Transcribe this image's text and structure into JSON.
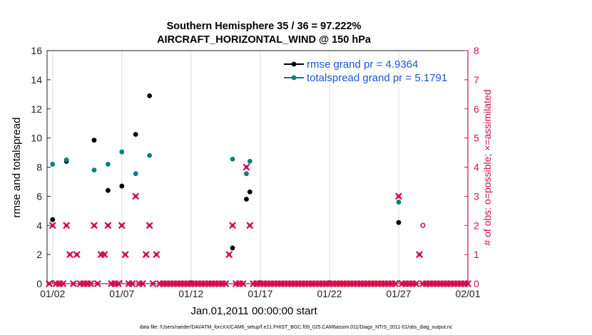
{
  "chart_data": {
    "type": "scatter",
    "title": "Southern Hemisphere 35 / 36 = 97.222%",
    "subtitle": "AIRCRAFT_HORIZONTAL_WIND @ 150 hPa",
    "xlabel": "Jan.01,2011 00:00:00 start",
    "ylabel": "rmse and totalspread",
    "ylabel_right": "# of obs: o=possible; ×=assimilated",
    "footnote": "data file: /Users/raeder/DAI/ATM_forcXX/CAM6_setup/f.e21.FHIST_BGC.f09_025.CAM6assim.011/Diags_NTrS_2011-01/obs_diag_output.nc",
    "x_ticks": [
      {
        "x": 2,
        "label": "01/02"
      },
      {
        "x": 7,
        "label": "01/07"
      },
      {
        "x": 12,
        "label": "01/12"
      },
      {
        "x": 17,
        "label": "01/17"
      },
      {
        "x": 22,
        "label": "01/22"
      },
      {
        "x": 27,
        "label": "01/27"
      },
      {
        "x": 32,
        "label": "02/01"
      }
    ],
    "xlim": [
      1.6,
      32
    ],
    "ylim": [
      0,
      16
    ],
    "y_ticks": [
      0,
      2,
      4,
      6,
      8,
      10,
      12,
      14,
      16
    ],
    "ylim_right": [
      0,
      8
    ],
    "y_ticks_right": [
      0,
      1,
      2,
      3,
      4,
      5,
      6,
      7,
      8
    ],
    "grid": "vertical",
    "legend_position": "top-right",
    "colors": {
      "rmse": "#000000",
      "totalspread": "#008080",
      "obs": "#d0104c"
    },
    "series": [
      {
        "name": "rmse grand pr = 4.9364",
        "color": "#000000",
        "x": [
          2.0,
          3.0,
          5.0,
          6.0,
          7.0,
          8.0,
          9.0,
          15.0,
          16.0,
          16.25,
          27.0
        ],
        "y": [
          4.4,
          8.4,
          9.85,
          6.4,
          6.7,
          10.25,
          12.9,
          2.45,
          5.8,
          6.3,
          4.2
        ]
      },
      {
        "name": "totalspread grand pr = 5.1791",
        "color": "#008080",
        "x": [
          2.0,
          3.0,
          5.0,
          6.0,
          7.0,
          8.0,
          9.0,
          15.0,
          16.0,
          16.25,
          27.0
        ],
        "y": [
          8.2,
          8.5,
          7.8,
          8.2,
          9.05,
          7.55,
          8.8,
          8.55,
          7.55,
          8.4,
          5.6
        ]
      }
    ],
    "obs_assimilated": {
      "x": [
        1.75,
        2.0,
        2.25,
        2.5,
        2.75,
        3.0,
        3.25,
        3.5,
        3.75,
        4.0,
        4.25,
        4.5,
        4.75,
        5.0,
        5.25,
        5.5,
        5.75,
        6.0,
        6.25,
        6.5,
        6.75,
        7.0,
        7.25,
        7.5,
        7.75,
        8.0,
        8.25,
        8.5,
        8.75,
        9.0,
        9.25,
        9.5,
        9.75,
        10.0,
        10.25,
        10.5,
        10.75,
        11.0,
        11.25,
        11.5,
        11.75,
        12.0,
        12.25,
        12.5,
        12.75,
        13.0,
        13.25,
        13.5,
        13.75,
        14.0,
        14.25,
        14.5,
        14.75,
        15.0,
        15.25,
        15.5,
        15.75,
        16.0,
        16.25,
        16.5,
        16.75,
        17.0,
        17.25,
        17.5,
        17.75,
        18.0,
        18.25,
        18.5,
        18.75,
        19.0,
        19.25,
        19.5,
        19.75,
        20.0,
        20.25,
        20.5,
        20.75,
        21.0,
        21.25,
        21.5,
        21.75,
        22.0,
        22.25,
        22.5,
        22.75,
        23.0,
        23.25,
        23.5,
        23.75,
        24.0,
        24.25,
        24.5,
        24.75,
        25.0,
        25.25,
        25.5,
        25.75,
        26.0,
        26.25,
        26.5,
        26.75,
        27.0,
        27.25,
        27.5,
        27.75,
        28.0,
        28.25,
        28.5,
        28.75,
        29.0,
        29.25,
        29.5,
        29.75,
        30.0,
        30.25,
        30.5,
        30.75,
        31.0,
        31.25,
        31.5,
        31.75,
        32.0
      ],
      "y": [
        0,
        2,
        0,
        0,
        0,
        2,
        1,
        0,
        1,
        0,
        0,
        0,
        0,
        2,
        0,
        1,
        1,
        2,
        0,
        0,
        0,
        2,
        1,
        0,
        0,
        3,
        0,
        0,
        1,
        2,
        0,
        1,
        0,
        0,
        0,
        0,
        0,
        0,
        0,
        0,
        0,
        0,
        0,
        0,
        0,
        0,
        0,
        0,
        0,
        0,
        0,
        0,
        1,
        2,
        0,
        0,
        0,
        4,
        2,
        0,
        0,
        0,
        0,
        0,
        0,
        0,
        0,
        0,
        0,
        0,
        0,
        0,
        0,
        0,
        0,
        0,
        0,
        0,
        0,
        0,
        0,
        0,
        0,
        0,
        0,
        0,
        0,
        0,
        0,
        0,
        0,
        0,
        0,
        0,
        0,
        0,
        0,
        0,
        0,
        0,
        0,
        3,
        0,
        0,
        0,
        0,
        0,
        1,
        0,
        0,
        0,
        0,
        0,
        0,
        0,
        0,
        0,
        0,
        0,
        0,
        0,
        0
      ]
    },
    "obs_possible": {
      "x": [
        28.75
      ],
      "y": [
        2
      ]
    }
  }
}
